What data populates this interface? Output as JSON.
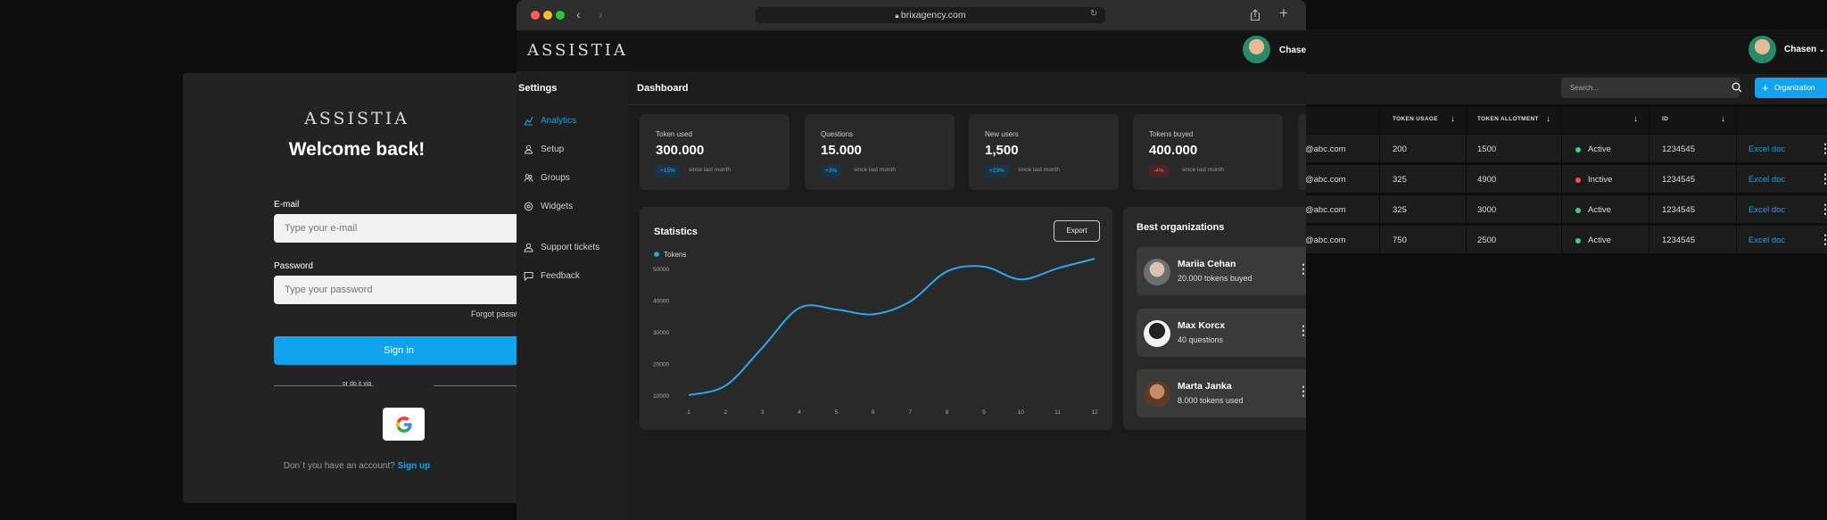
{
  "login": {
    "logo": "ASSISTIA",
    "title": "Welcome back!",
    "email_label": "E-mail",
    "email_placeholder": "Type your e-mail",
    "password_label": "Password",
    "password_placeholder": "Type your password",
    "forgot": "Forgot passw",
    "signin": "Sign in",
    "or": "or do it via",
    "signup_prefix": "Don´t you have an account?",
    "signup_link": "Sign up"
  },
  "browser": {
    "url": "brixagency.com",
    "brand": "ASSISTIA",
    "user": "Chasen"
  },
  "sidebar": {
    "title": "Settings",
    "items": [
      {
        "label": "Analytics",
        "icon": "chart-icon",
        "active": true
      },
      {
        "label": "Setup",
        "icon": "user-icon",
        "active": false
      },
      {
        "label": "Groups",
        "icon": "group-icon",
        "active": false
      },
      {
        "label": "Widgets",
        "icon": "widget-icon",
        "active": false
      },
      {
        "label": "Support tickets",
        "icon": "support-icon",
        "active": false
      },
      {
        "label": "Feedback",
        "icon": "feedback-icon",
        "active": false
      }
    ]
  },
  "dashboard": {
    "title": "Dashboard",
    "stats": [
      {
        "label": "Token used",
        "value": "300.000",
        "badge": "+15%",
        "badge_type": "up",
        "since": "since last month"
      },
      {
        "label": "Questions",
        "value": "15.000",
        "badge": "+3%",
        "badge_type": "up",
        "since": "since last month"
      },
      {
        "label": "New users",
        "value": "1,500",
        "badge": "+23%",
        "badge_type": "up",
        "since": "since last month"
      },
      {
        "label": "Tokens buyed",
        "value": "400.000",
        "badge": "-4%",
        "badge_type": "down",
        "since": "since last month"
      }
    ],
    "statistics_title": "Statistics",
    "export": "Export",
    "best_title": "Best organizations",
    "orgs": [
      {
        "name": "Mariia Cehan",
        "detail": "20.000 tokens buyed"
      },
      {
        "name": "Max Korcx",
        "detail": "40 questions"
      },
      {
        "name": "Marta Janka",
        "detail": "8.000 tokens used"
      }
    ]
  },
  "chart_data": {
    "type": "line",
    "legend": [
      "Tokens"
    ],
    "x": [
      1,
      2,
      3,
      4,
      5,
      6,
      7,
      8,
      9,
      10,
      11,
      12
    ],
    "series": [
      {
        "name": "Tokens",
        "values": [
          10000,
          13000,
          25000,
          37500,
          37000,
          35500,
          39500,
          49000,
          50500,
          46500,
          50000,
          53000
        ]
      }
    ],
    "yticks": [
      10000,
      20000,
      30000,
      40000,
      50000
    ],
    "ylim": [
      10000,
      55000
    ],
    "color": "#2aa8f0"
  },
  "right": {
    "user": "Chasen",
    "search_placeholder": "Search...",
    "org_button": "Organization",
    "columns": [
      "TOKEN USAGE",
      "TOKEN ALLOTMENT",
      "ID"
    ],
    "rows": [
      {
        "email": "@abc.com",
        "usage": "200",
        "allotment": "1500",
        "status": "Active",
        "status_color": "#3ccf8e",
        "id": "1234545",
        "doc": "Excel doc"
      },
      {
        "email": "@abc.com",
        "usage": "325",
        "allotment": "4900",
        "status": "Inctive",
        "status_color": "#f05252",
        "id": "1234545",
        "doc": "Excel doc"
      },
      {
        "email": "@abc.com",
        "usage": "325",
        "allotment": "3000",
        "status": "Active",
        "status_color": "#3ccf8e",
        "id": "1234545",
        "doc": "Excel doc"
      },
      {
        "email": "@abc.com",
        "usage": "750",
        "allotment": "2500",
        "status": "Active",
        "status_color": "#3ccf8e",
        "id": "1234545",
        "doc": "Excel doc"
      }
    ]
  }
}
